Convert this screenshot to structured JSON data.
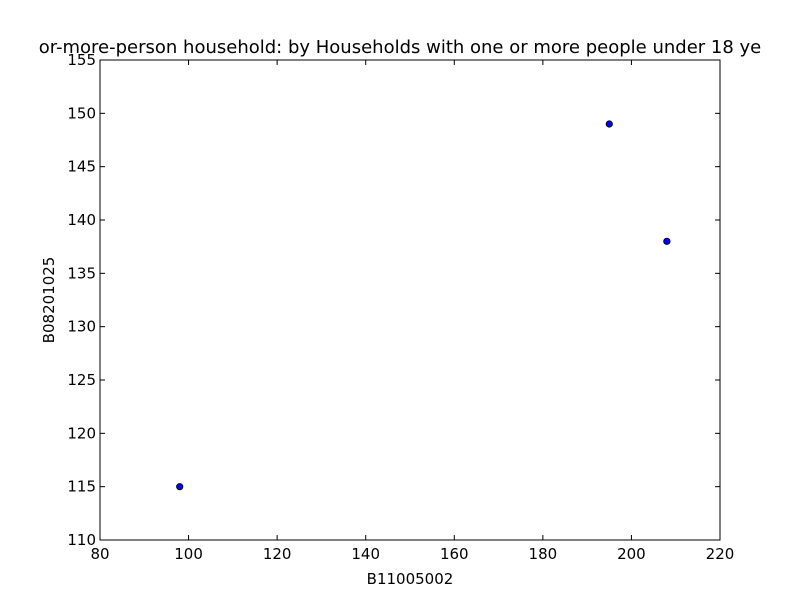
{
  "chart_data": {
    "type": "scatter",
    "title": "or-more-person household: by Households with one or more people under 18 ye",
    "xlabel": "B11005002",
    "ylabel": "B08201025",
    "xlim": [
      80,
      220
    ],
    "ylim": [
      110,
      155
    ],
    "xticks": [
      80,
      100,
      120,
      140,
      160,
      180,
      200,
      220
    ],
    "yticks": [
      110,
      115,
      120,
      125,
      130,
      135,
      140,
      145,
      150,
      155
    ],
    "grid": false,
    "points": [
      {
        "x": 98,
        "y": 115
      },
      {
        "x": 195,
        "y": 149
      },
      {
        "x": 208,
        "y": 138
      }
    ],
    "marker_color": "#0000ff"
  }
}
